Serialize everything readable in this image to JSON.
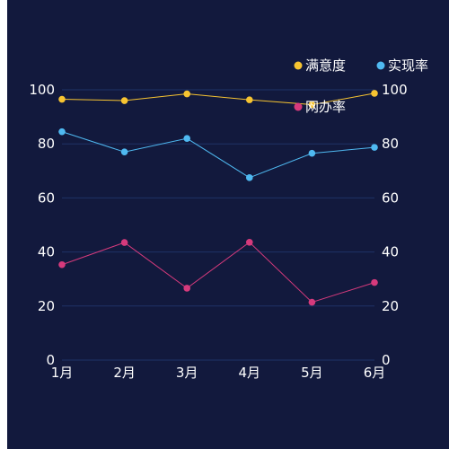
{
  "chart_data": {
    "type": "line",
    "categories": [
      "1月",
      "2月",
      "3月",
      "4月",
      "5月",
      "6月"
    ],
    "y_left": {
      "min": 0,
      "max": 100,
      "ticks": [
        0,
        20,
        40,
        60,
        80,
        100
      ]
    },
    "y_right": {
      "min": 0,
      "max": 100,
      "ticks": [
        0,
        20,
        40,
        60,
        80,
        100
      ]
    },
    "grid": true,
    "legend_position": "top-right",
    "series": [
      {
        "name": "满意度",
        "color": "#f7c431",
        "values": [
          96.5,
          96,
          98.5,
          96.3,
          94.5,
          98.7
        ]
      },
      {
        "name": "实现率",
        "color": "#4fb9f1",
        "values": [
          84.5,
          77,
          82,
          67.5,
          76.5,
          78.7
        ]
      },
      {
        "name": "网办率",
        "color": "#d63a7c",
        "values": [
          35.3,
          43.5,
          26.6,
          43.6,
          21.4,
          28.7
        ]
      }
    ]
  },
  "style": {
    "background": "#12193d",
    "grid_color": "#1f3266",
    "axis_text_color": "#ffffff"
  }
}
